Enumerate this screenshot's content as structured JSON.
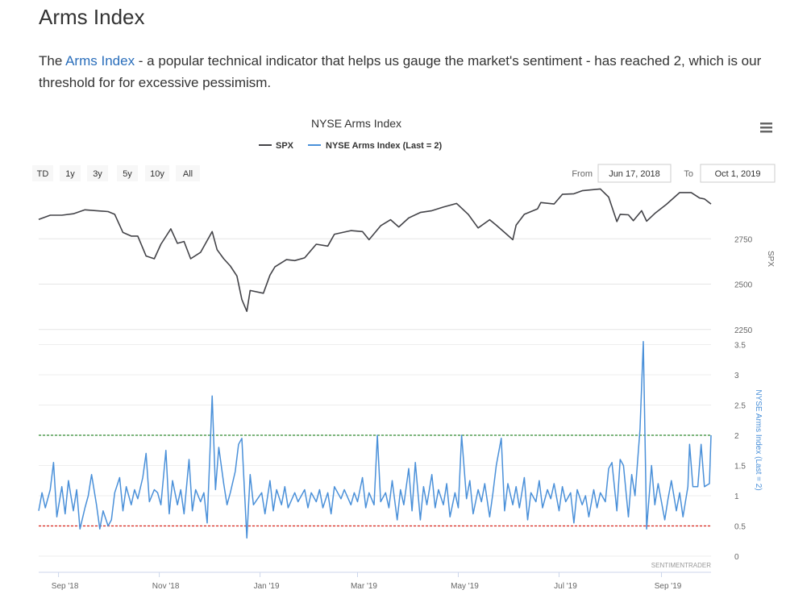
{
  "heading": "Arms Index",
  "intro": {
    "prefix": "The ",
    "link_text": "Arms Index",
    "suffix": " - a popular technical indicator that helps us gauge the market's sentiment - has reached 2, which is our threshold for for excessive pessimism."
  },
  "chart_data": {
    "type": "line",
    "title": "NYSE Arms Index",
    "legend": [
      {
        "name": "SPX",
        "color": "#434348"
      },
      {
        "name": "NYSE Arms Index (Last = 2)",
        "color": "#4a90d9"
      }
    ],
    "range_selector": {
      "buttons": [
        "TD",
        "1y",
        "3y",
        "5y",
        "10y",
        "All"
      ],
      "from_label": "From",
      "from_value": "Jun 17, 2018",
      "to_label": "To",
      "to_value": "Oct 1, 2019"
    },
    "x_axis": {
      "min": "2018-08-20",
      "max": "2019-10-01",
      "ticks": [
        {
          "date": "2018-09-01",
          "label": "Sep '18"
        },
        {
          "date": "2018-11-01",
          "label": "Nov '18"
        },
        {
          "date": "2019-01-01",
          "label": "Jan '19"
        },
        {
          "date": "2019-03-01",
          "label": "Mar '19"
        },
        {
          "date": "2019-05-01",
          "label": "May '19"
        },
        {
          "date": "2019-07-01",
          "label": "Jul '19"
        },
        {
          "date": "2019-09-01",
          "label": "Sep '19"
        }
      ]
    },
    "spx_axis": {
      "label": "SPX",
      "min": 2200,
      "max": 3000,
      "ticks": [
        2250,
        2500,
        2750
      ]
    },
    "arms_axis": {
      "label": "NYSE Arms Index (Last = 2)",
      "min": 0,
      "max": 3.6,
      "ticks": [
        "0",
        "0.5",
        "1",
        "1.5",
        "2",
        "2.5",
        "3",
        "3.5"
      ]
    },
    "thresholds": [
      {
        "value": 2.0,
        "color": "#2e8b2e"
      },
      {
        "value": 0.5,
        "color": "#d9241c"
      }
    ],
    "series": [
      {
        "name": "SPX",
        "color": "#434348",
        "points": [
          [
            "2018-08-20",
            2857
          ],
          [
            "2018-08-27",
            2880
          ],
          [
            "2018-09-03",
            2880
          ],
          [
            "2018-09-10",
            2888
          ],
          [
            "2018-09-17",
            2910
          ],
          [
            "2018-09-24",
            2905
          ],
          [
            "2018-10-01",
            2900
          ],
          [
            "2018-10-05",
            2885
          ],
          [
            "2018-10-10",
            2785
          ],
          [
            "2018-10-15",
            2765
          ],
          [
            "2018-10-19",
            2765
          ],
          [
            "2018-10-24",
            2655
          ],
          [
            "2018-10-29",
            2640
          ],
          [
            "2018-11-02",
            2720
          ],
          [
            "2018-11-08",
            2805
          ],
          [
            "2018-11-12",
            2725
          ],
          [
            "2018-11-16",
            2735
          ],
          [
            "2018-11-20",
            2640
          ],
          [
            "2018-11-26",
            2675
          ],
          [
            "2018-12-03",
            2790
          ],
          [
            "2018-12-06",
            2690
          ],
          [
            "2018-12-10",
            2640
          ],
          [
            "2018-12-14",
            2600
          ],
          [
            "2018-12-18",
            2545
          ],
          [
            "2018-12-21",
            2415
          ],
          [
            "2018-12-24",
            2350
          ],
          [
            "2018-12-26",
            2465
          ],
          [
            "2019-01-03",
            2450
          ],
          [
            "2019-01-07",
            2550
          ],
          [
            "2019-01-10",
            2595
          ],
          [
            "2019-01-17",
            2635
          ],
          [
            "2019-01-22",
            2630
          ],
          [
            "2019-01-28",
            2645
          ],
          [
            "2019-02-04",
            2720
          ],
          [
            "2019-02-11",
            2710
          ],
          [
            "2019-02-15",
            2775
          ],
          [
            "2019-02-25",
            2795
          ],
          [
            "2019-03-04",
            2790
          ],
          [
            "2019-03-08",
            2745
          ],
          [
            "2019-03-15",
            2822
          ],
          [
            "2019-03-21",
            2855
          ],
          [
            "2019-03-26",
            2815
          ],
          [
            "2019-04-01",
            2865
          ],
          [
            "2019-04-08",
            2895
          ],
          [
            "2019-04-15",
            2905
          ],
          [
            "2019-04-22",
            2925
          ],
          [
            "2019-04-30",
            2945
          ],
          [
            "2019-05-07",
            2885
          ],
          [
            "2019-05-13",
            2810
          ],
          [
            "2019-05-20",
            2855
          ],
          [
            "2019-05-24",
            2825
          ],
          [
            "2019-05-29",
            2785
          ],
          [
            "2019-06-03",
            2745
          ],
          [
            "2019-06-05",
            2825
          ],
          [
            "2019-06-10",
            2885
          ],
          [
            "2019-06-18",
            2915
          ],
          [
            "2019-06-20",
            2950
          ],
          [
            "2019-06-28",
            2942
          ],
          [
            "2019-07-03",
            2995
          ],
          [
            "2019-07-10",
            2998
          ],
          [
            "2019-07-15",
            3015
          ],
          [
            "2019-07-26",
            3025
          ],
          [
            "2019-07-31",
            2980
          ],
          [
            "2019-08-05",
            2845
          ],
          [
            "2019-08-07",
            2885
          ],
          [
            "2019-08-12",
            2882
          ],
          [
            "2019-08-15",
            2850
          ],
          [
            "2019-08-20",
            2905
          ],
          [
            "2019-08-23",
            2847
          ],
          [
            "2019-08-28",
            2890
          ],
          [
            "2019-09-04",
            2940
          ],
          [
            "2019-09-12",
            3005
          ],
          [
            "2019-09-19",
            3005
          ],
          [
            "2019-09-24",
            2975
          ],
          [
            "2019-09-27",
            2970
          ],
          [
            "2019-10-01",
            2942
          ]
        ]
      },
      {
        "name": "NYSE Arms Index (Last = 2)",
        "color": "#4a90d9",
        "points": [
          [
            "2018-08-20",
            0.75
          ],
          [
            "2018-08-22",
            1.05
          ],
          [
            "2018-08-24",
            0.8
          ],
          [
            "2018-08-27",
            1.1
          ],
          [
            "2018-08-29",
            1.55
          ],
          [
            "2018-08-31",
            0.65
          ],
          [
            "2018-09-03",
            1.15
          ],
          [
            "2018-09-05",
            0.7
          ],
          [
            "2018-09-07",
            1.25
          ],
          [
            "2018-09-10",
            0.75
          ],
          [
            "2018-09-12",
            1.1
          ],
          [
            "2018-09-14",
            0.45
          ],
          [
            "2018-09-17",
            0.8
          ],
          [
            "2018-09-19",
            1.0
          ],
          [
            "2018-09-21",
            1.35
          ],
          [
            "2018-09-24",
            0.85
          ],
          [
            "2018-09-26",
            0.45
          ],
          [
            "2018-09-28",
            0.75
          ],
          [
            "2018-10-01",
            0.5
          ],
          [
            "2018-10-03",
            0.6
          ],
          [
            "2018-10-05",
            1.05
          ],
          [
            "2018-10-08",
            1.3
          ],
          [
            "2018-10-10",
            0.75
          ],
          [
            "2018-10-12",
            1.15
          ],
          [
            "2018-10-15",
            0.85
          ],
          [
            "2018-10-17",
            1.1
          ],
          [
            "2018-10-19",
            0.95
          ],
          [
            "2018-10-22",
            1.3
          ],
          [
            "2018-10-24",
            1.7
          ],
          [
            "2018-10-26",
            0.9
          ],
          [
            "2018-10-29",
            1.1
          ],
          [
            "2018-10-31",
            1.05
          ],
          [
            "2018-11-02",
            0.85
          ],
          [
            "2018-11-05",
            1.75
          ],
          [
            "2018-11-07",
            0.7
          ],
          [
            "2018-11-09",
            1.25
          ],
          [
            "2018-11-12",
            0.85
          ],
          [
            "2018-11-14",
            1.1
          ],
          [
            "2018-11-16",
            0.7
          ],
          [
            "2018-11-19",
            1.6
          ],
          [
            "2018-11-21",
            0.75
          ],
          [
            "2018-11-23",
            1.1
          ],
          [
            "2018-11-26",
            0.9
          ],
          [
            "2018-11-28",
            1.05
          ],
          [
            "2018-11-30",
            0.55
          ],
          [
            "2018-12-03",
            2.65
          ],
          [
            "2018-12-05",
            1.1
          ],
          [
            "2018-12-07",
            1.8
          ],
          [
            "2018-12-10",
            1.2
          ],
          [
            "2018-12-12",
            0.85
          ],
          [
            "2018-12-14",
            1.05
          ],
          [
            "2018-12-17",
            1.4
          ],
          [
            "2018-12-19",
            1.85
          ],
          [
            "2018-12-21",
            1.95
          ],
          [
            "2018-12-24",
            0.3
          ],
          [
            "2018-12-26",
            1.35
          ],
          [
            "2018-12-28",
            0.85
          ],
          [
            "2019-01-02",
            1.05
          ],
          [
            "2019-01-04",
            0.7
          ],
          [
            "2019-01-07",
            1.25
          ],
          [
            "2019-01-09",
            0.75
          ],
          [
            "2019-01-11",
            1.1
          ],
          [
            "2019-01-14",
            0.85
          ],
          [
            "2019-01-16",
            1.15
          ],
          [
            "2019-01-18",
            0.8
          ],
          [
            "2019-01-22",
            1.05
          ],
          [
            "2019-01-24",
            0.9
          ],
          [
            "2019-01-28",
            1.1
          ],
          [
            "2019-01-30",
            0.8
          ],
          [
            "2019-02-01",
            1.05
          ],
          [
            "2019-02-04",
            0.9
          ],
          [
            "2019-02-06",
            1.1
          ],
          [
            "2019-02-08",
            0.8
          ],
          [
            "2019-02-11",
            1.05
          ],
          [
            "2019-02-13",
            0.7
          ],
          [
            "2019-02-15",
            1.15
          ],
          [
            "2019-02-19",
            0.95
          ],
          [
            "2019-02-21",
            1.1
          ],
          [
            "2019-02-25",
            0.85
          ],
          [
            "2019-02-27",
            1.05
          ],
          [
            "2019-03-01",
            0.9
          ],
          [
            "2019-03-04",
            1.3
          ],
          [
            "2019-03-06",
            0.8
          ],
          [
            "2019-03-08",
            1.05
          ],
          [
            "2019-03-11",
            0.85
          ],
          [
            "2019-03-13",
            2.0
          ],
          [
            "2019-03-15",
            0.9
          ],
          [
            "2019-03-18",
            1.05
          ],
          [
            "2019-03-20",
            0.8
          ],
          [
            "2019-03-22",
            1.25
          ],
          [
            "2019-03-25",
            0.6
          ],
          [
            "2019-03-27",
            1.1
          ],
          [
            "2019-03-29",
            0.85
          ],
          [
            "2019-04-01",
            1.45
          ],
          [
            "2019-04-03",
            0.75
          ],
          [
            "2019-04-05",
            1.55
          ],
          [
            "2019-04-08",
            0.6
          ],
          [
            "2019-04-10",
            1.15
          ],
          [
            "2019-04-12",
            0.85
          ],
          [
            "2019-04-15",
            1.35
          ],
          [
            "2019-04-17",
            0.8
          ],
          [
            "2019-04-19",
            1.1
          ],
          [
            "2019-04-22",
            0.85
          ],
          [
            "2019-04-24",
            1.2
          ],
          [
            "2019-04-26",
            0.65
          ],
          [
            "2019-04-29",
            1.05
          ],
          [
            "2019-05-01",
            0.8
          ],
          [
            "2019-05-03",
            2.0
          ],
          [
            "2019-05-06",
            0.95
          ],
          [
            "2019-05-08",
            1.25
          ],
          [
            "2019-05-10",
            0.7
          ],
          [
            "2019-05-13",
            1.1
          ],
          [
            "2019-05-15",
            0.9
          ],
          [
            "2019-05-17",
            1.2
          ],
          [
            "2019-05-20",
            0.65
          ],
          [
            "2019-05-22",
            1.05
          ],
          [
            "2019-05-24",
            1.5
          ],
          [
            "2019-05-27",
            1.95
          ],
          [
            "2019-05-29",
            0.75
          ],
          [
            "2019-05-31",
            1.2
          ],
          [
            "2019-06-03",
            0.85
          ],
          [
            "2019-06-05",
            1.15
          ],
          [
            "2019-06-07",
            0.8
          ],
          [
            "2019-06-10",
            1.3
          ],
          [
            "2019-06-12",
            0.6
          ],
          [
            "2019-06-14",
            1.05
          ],
          [
            "2019-06-17",
            0.9
          ],
          [
            "2019-06-19",
            1.25
          ],
          [
            "2019-06-21",
            0.8
          ],
          [
            "2019-06-24",
            1.1
          ],
          [
            "2019-06-26",
            0.95
          ],
          [
            "2019-06-28",
            1.2
          ],
          [
            "2019-07-01",
            0.75
          ],
          [
            "2019-07-03",
            1.15
          ],
          [
            "2019-07-05",
            0.9
          ],
          [
            "2019-07-08",
            1.05
          ],
          [
            "2019-07-10",
            0.55
          ],
          [
            "2019-07-12",
            1.1
          ],
          [
            "2019-07-15",
            0.85
          ],
          [
            "2019-07-17",
            1.0
          ],
          [
            "2019-07-19",
            0.65
          ],
          [
            "2019-07-22",
            1.1
          ],
          [
            "2019-07-24",
            0.8
          ],
          [
            "2019-07-26",
            1.05
          ],
          [
            "2019-07-29",
            0.9
          ],
          [
            "2019-07-31",
            1.45
          ],
          [
            "2019-08-02",
            1.55
          ],
          [
            "2019-08-05",
            0.75
          ],
          [
            "2019-08-07",
            1.6
          ],
          [
            "2019-08-09",
            1.5
          ],
          [
            "2019-08-12",
            0.65
          ],
          [
            "2019-08-14",
            1.35
          ],
          [
            "2019-08-16",
            1.0
          ],
          [
            "2019-08-19",
            2.1
          ],
          [
            "2019-08-21",
            3.55
          ],
          [
            "2019-08-23",
            0.45
          ],
          [
            "2019-08-26",
            1.5
          ],
          [
            "2019-08-28",
            0.85
          ],
          [
            "2019-08-30",
            1.2
          ],
          [
            "2019-09-03",
            0.6
          ],
          [
            "2019-09-05",
            0.95
          ],
          [
            "2019-09-07",
            1.25
          ],
          [
            "2019-09-10",
            0.75
          ],
          [
            "2019-09-12",
            1.05
          ],
          [
            "2019-09-14",
            0.65
          ],
          [
            "2019-09-17",
            1.15
          ],
          [
            "2019-09-18",
            1.85
          ],
          [
            "2019-09-20",
            1.15
          ],
          [
            "2019-09-23",
            1.15
          ],
          [
            "2019-09-25",
            1.85
          ],
          [
            "2019-09-27",
            1.15
          ],
          [
            "2019-09-30",
            1.2
          ],
          [
            "2019-10-01",
            2.0
          ]
        ]
      }
    ],
    "credit": "SENTIMENTRADER"
  }
}
